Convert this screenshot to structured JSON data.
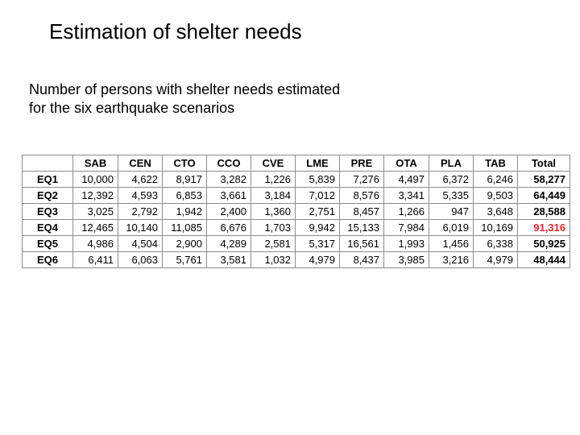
{
  "slide": {
    "title": "Estimation of shelter needs",
    "subtitle_lines": [
      "Number of persons with shelter needs estimated",
      "for the six earthquake scenarios"
    ]
  },
  "table": {
    "columns": [
      "",
      "SAB",
      "CEN",
      "CTO",
      "CCO",
      "CVE",
      "LME",
      "PRE",
      "OTA",
      "PLA",
      "TAB",
      "Total"
    ],
    "rows": [
      {
        "label": "EQ1",
        "values": [
          "10,000",
          "4,622",
          "8,917",
          "3,282",
          "1,226",
          "5,839",
          "7,276",
          "4,497",
          "6,372",
          "6,246"
        ],
        "total": "58,277",
        "highlight": false
      },
      {
        "label": "EQ2",
        "values": [
          "12,392",
          "4,593",
          "6,853",
          "3,661",
          "3,184",
          "7,012",
          "8,576",
          "3,341",
          "5,335",
          "9,503"
        ],
        "total": "64,449",
        "highlight": false
      },
      {
        "label": "EQ3",
        "values": [
          "3,025",
          "2,792",
          "1,942",
          "2,400",
          "1,360",
          "2,751",
          "8,457",
          "1,266",
          "947",
          "3,648"
        ],
        "total": "28,588",
        "highlight": false
      },
      {
        "label": "EQ4",
        "values": [
          "12,465",
          "10,140",
          "11,085",
          "6,676",
          "1,703",
          "9,942",
          "15,133",
          "7,984",
          "6,019",
          "10,169"
        ],
        "total": "91,316",
        "highlight": true
      },
      {
        "label": "EQ5",
        "values": [
          "4,986",
          "4,504",
          "2,900",
          "4,289",
          "2,581",
          "5,317",
          "16,561",
          "1,993",
          "1,456",
          "6,338"
        ],
        "total": "50,925",
        "highlight": false
      },
      {
        "label": "EQ6",
        "values": [
          "6,411",
          "6,063",
          "5,761",
          "3,581",
          "1,032",
          "4,979",
          "8,437",
          "3,985",
          "3,216",
          "4,979"
        ],
        "total": "48,444",
        "highlight": false
      }
    ],
    "highlight_color": "#e8262b"
  }
}
